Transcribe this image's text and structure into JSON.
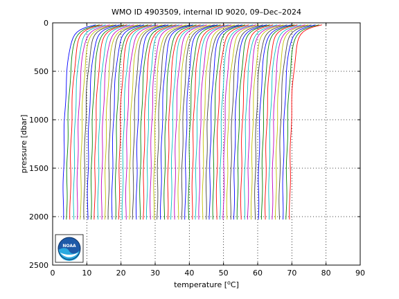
{
  "chart_data": {
    "type": "line",
    "title": "WMO ID 4903509, internal ID 9020, 09–Dec–2024",
    "xlabel": "temperature [°C]",
    "xlabel_prefix": "temperature [",
    "xlabel_degree": "o",
    "xlabel_suffix": "C]",
    "ylabel": "pressure [dbar]",
    "xlim": [
      0,
      90
    ],
    "ylim": [
      2500,
      0
    ],
    "y_reversed": true,
    "x_ticks": [
      0,
      10,
      20,
      30,
      40,
      50,
      60,
      70,
      80,
      90
    ],
    "x_tick_labels": [
      "0",
      "10",
      "20",
      "30",
      "40",
      "50",
      "60",
      "70",
      "80",
      "90"
    ],
    "y_ticks": [
      0,
      500,
      1000,
      1500,
      2000,
      2500
    ],
    "y_tick_labels": [
      "0",
      "500",
      "1000",
      "1500",
      "2000",
      "2500"
    ],
    "grid": true,
    "legend": "none",
    "series_encoding": "staggered temperature profiles; each successive profile offset along the temperature axis",
    "series_colors": [
      "#0000ff",
      "#008000",
      "#ff0000",
      "#00bfbf",
      "#bf00bf",
      "#bfbf00",
      "#404040"
    ],
    "profile_count": 66,
    "profile_offset_step": 1.02,
    "profile_shape": {
      "surface_temperature_offset": 14.6,
      "deep_temperature_offset": 2.9,
      "bottom_pressure": 2030,
      "top_pressure": 20
    },
    "logo": {
      "label": "NOAA",
      "position": "bottom-left"
    }
  }
}
